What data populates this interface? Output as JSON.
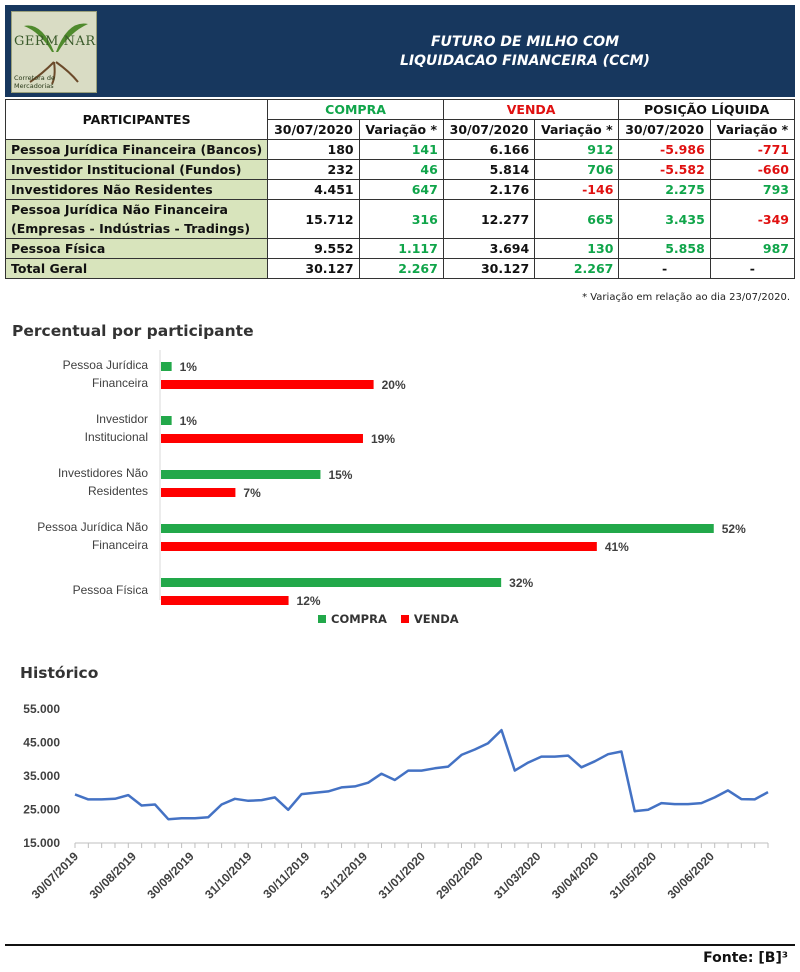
{
  "header": {
    "logo_text": "GERM NAR",
    "logo_sub": "Corretora de Mercadorias",
    "title_line1": "FUTURO DE MILHO COM",
    "title_line2": "LIQUIDACAO FINANCEIRA (CCM)"
  },
  "table": {
    "col_participantes": "PARTICIPANTES",
    "groups": [
      "COMPRA",
      "VENDA",
      "POSIÇÃO LÍQUIDA"
    ],
    "sub_date": "30/07/2020",
    "sub_var": "Variação *",
    "rows": [
      {
        "label": "Pessoa Jurídica Financeira (Bancos)",
        "c": "180",
        "cv": "141",
        "v": "6.166",
        "vv": "912",
        "p": "-5.986",
        "pv": "-771"
      },
      {
        "label": "Investidor Institucional (Fundos)",
        "c": "232",
        "cv": "46",
        "v": "5.814",
        "vv": "706",
        "p": "-5.582",
        "pv": "-660"
      },
      {
        "label": "Investidores Não Residentes",
        "c": "4.451",
        "cv": "647",
        "v": "2.176",
        "vv": "-146",
        "p": "2.275",
        "pv": "793"
      },
      {
        "label": "Pessoa Jurídica Não Financeira",
        "label2": "(Empresas - Indústrias - Tradings)",
        "c": "15.712",
        "cv": "316",
        "v": "12.277",
        "vv": "665",
        "p": "3.435",
        "pv": "-349"
      },
      {
        "label": "Pessoa Física",
        "c": "9.552",
        "cv": "1.117",
        "v": "3.694",
        "vv": "130",
        "p": "5.858",
        "pv": "987"
      },
      {
        "label": "Total Geral",
        "c": "30.127",
        "cv": "2.267",
        "v": "30.127",
        "vv": "2.267",
        "p": "-",
        "pv": "-"
      }
    ],
    "footnote": "* Variação em relação ao dia 23/07/2020."
  },
  "colors": {
    "green": "#22a84a",
    "red": "#ff0000",
    "line": "#4472c4",
    "header_bg": "#17375e"
  },
  "chart_data": [
    {
      "type": "bar",
      "orientation": "horizontal",
      "title": "Percentual por participante",
      "categories": [
        [
          "Pessoa Jurídica",
          "Financeira"
        ],
        [
          "Investidor",
          "Institucional"
        ],
        [
          "Investidores Não",
          "Residentes"
        ],
        [
          "Pessoa Jurídica Não",
          "Financeira"
        ],
        [
          "Pessoa Física"
        ]
      ],
      "series": [
        {
          "name": "COMPRA",
          "values": [
            1,
            1,
            15,
            52,
            32
          ],
          "labels": [
            "1%",
            "1%",
            "15%",
            "52%",
            "32%"
          ]
        },
        {
          "name": "VENDA",
          "values": [
            20,
            19,
            7,
            41,
            12
          ],
          "labels": [
            "20%",
            "19%",
            "7%",
            "41%",
            "12%"
          ]
        }
      ],
      "legend": "bottom"
    },
    {
      "type": "line",
      "title": "Histórico",
      "yticks": [
        "15.000",
        "25.000",
        "35.000",
        "45.000",
        "55.000"
      ],
      "ylim": [
        15000,
        55000
      ],
      "xtick_labels": [
        "30/07/2019",
        "30/08/2019",
        "30/09/2019",
        "31/10/2019",
        "30/11/2019",
        "31/12/2019",
        "31/01/2020",
        "29/02/2020",
        "31/03/2020",
        "30/04/2020",
        "31/05/2020",
        "30/06/2020"
      ],
      "values": [
        29500,
        28000,
        28000,
        28200,
        29300,
        26200,
        26500,
        22100,
        22400,
        22400,
        22700,
        26500,
        28200,
        27600,
        27800,
        28600,
        24900,
        29600,
        30000,
        30400,
        31600,
        31900,
        33000,
        35700,
        33800,
        36600,
        36600,
        37300,
        37800,
        41300,
        42900,
        44800,
        48700,
        36600,
        39000,
        40800,
        40800,
        41100,
        37600,
        39400,
        41500,
        42300,
        24500,
        24900,
        26900,
        26600,
        26600,
        26900,
        28600,
        30700,
        28100,
        28000,
        30200
      ]
    }
  ],
  "source": "Fonte: [B]³"
}
